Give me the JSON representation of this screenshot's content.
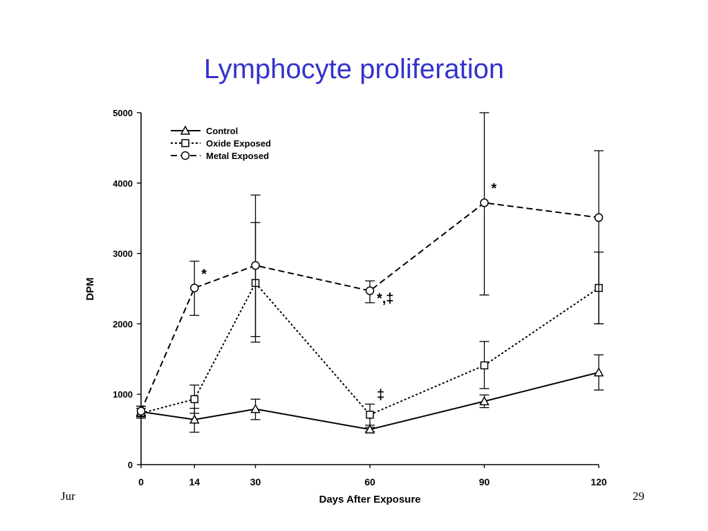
{
  "slide": {
    "title": "Lymphocyte proliferation",
    "footer_left": "Jur",
    "page_number": "29"
  },
  "chart_data": {
    "type": "line",
    "xlabel": "Days After Exposure",
    "ylabel": "DPM",
    "x_ticks": [
      0,
      14,
      30,
      60,
      90,
      120
    ],
    "y_ticks": [
      0,
      1000,
      2000,
      3000,
      4000,
      5000
    ],
    "xlim": [
      0,
      120
    ],
    "ylim": [
      0,
      5000
    ],
    "legend_position": "top-left",
    "series": [
      {
        "name": "Control",
        "marker": "triangle",
        "line_style": "solid",
        "x": [
          0,
          14,
          30,
          60,
          90,
          120
        ],
        "y": [
          750,
          640,
          790,
          500,
          900,
          1310
        ],
        "error_low": [
          680,
          460,
          640,
          470,
          810,
          1060
        ],
        "error_high": [
          830,
          800,
          930,
          530,
          990,
          1560
        ]
      },
      {
        "name": "Oxide Exposed",
        "marker": "square",
        "line_style": "dotted",
        "x": [
          0,
          14,
          30,
          60,
          90,
          120
        ],
        "y": [
          730,
          930,
          2580,
          710,
          1410,
          2510
        ],
        "error_low": [
          660,
          730,
          1740,
          560,
          1080,
          2000
        ],
        "error_high": [
          800,
          1130,
          3440,
          860,
          1750,
          3020
        ]
      },
      {
        "name": "Metal Exposed",
        "marker": "circle",
        "line_style": "dashed",
        "x": [
          0,
          14,
          30,
          60,
          90,
          120
        ],
        "y": [
          760,
          2510,
          2830,
          2470,
          3720,
          3510
        ],
        "error_low": [
          690,
          2120,
          1820,
          2300,
          2410,
          2000
        ],
        "error_high": [
          830,
          2890,
          3830,
          2610,
          5000,
          4460
        ]
      }
    ],
    "annotations": [
      {
        "text": "*",
        "x": 14,
        "y": 2640
      },
      {
        "text": "*,‡",
        "x": 60,
        "y": 2300
      },
      {
        "text": "‡",
        "x": 60,
        "y": 930
      },
      {
        "text": "*",
        "x": 90,
        "y": 3860
      }
    ]
  }
}
